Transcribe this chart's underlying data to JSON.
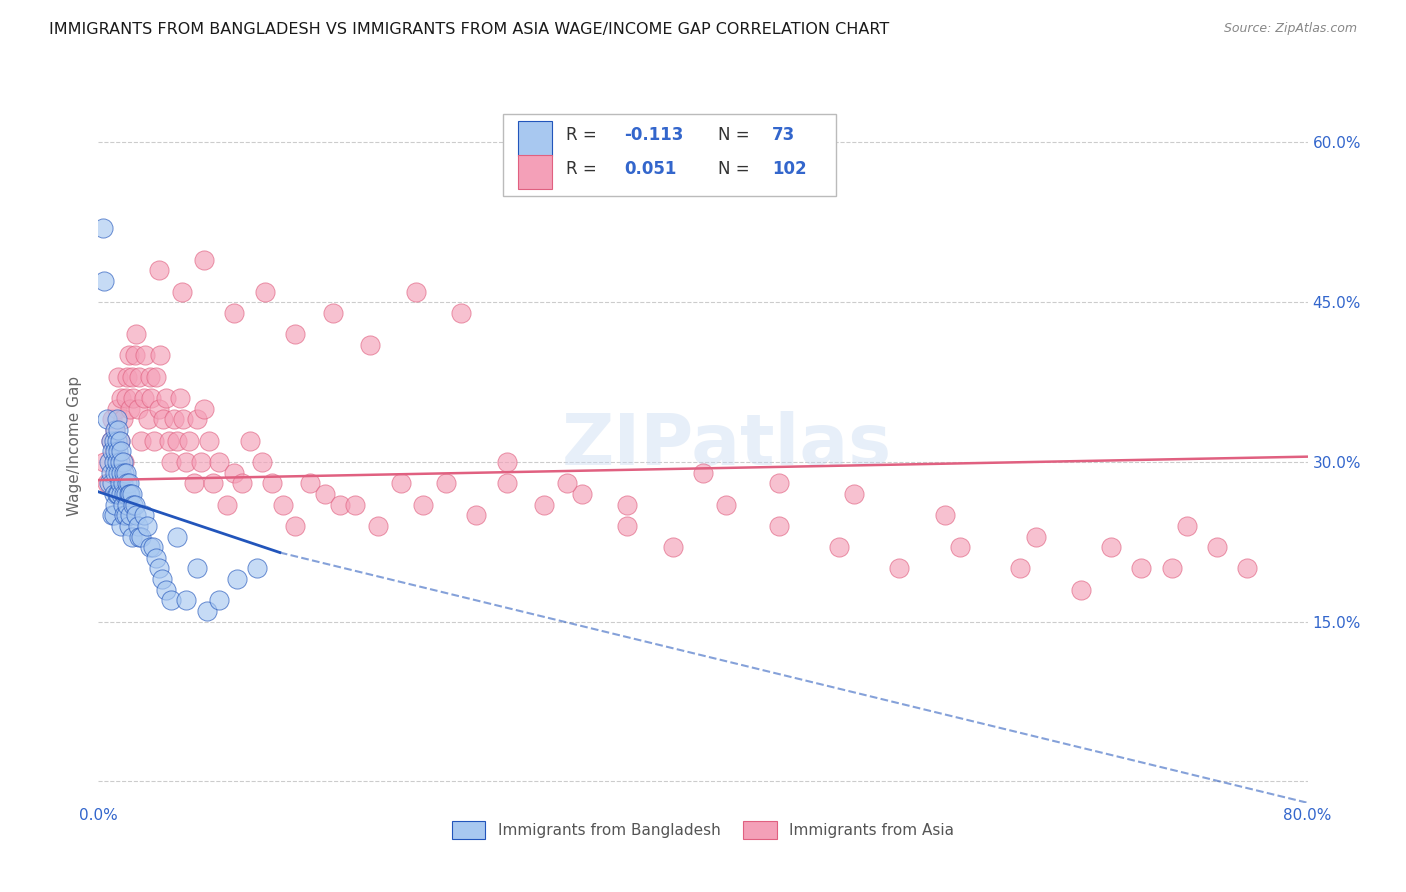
{
  "title": "IMMIGRANTS FROM BANGLADESH VS IMMIGRANTS FROM ASIA WAGE/INCOME GAP CORRELATION CHART",
  "source": "Source: ZipAtlas.com",
  "ylabel": "Wage/Income Gap",
  "xlim": [
    0.0,
    0.8
  ],
  "ylim": [
    -0.02,
    0.65
  ],
  "color_bangladesh": "#A8C8F0",
  "color_asia": "#F4A0B8",
  "line_color_bangladesh": "#2255BB",
  "line_color_asia": "#E06080",
  "watermark": "ZIPatlas",
  "bangladesh_x": [
    0.003,
    0.004,
    0.006,
    0.007,
    0.007,
    0.008,
    0.008,
    0.009,
    0.009,
    0.009,
    0.01,
    0.01,
    0.01,
    0.01,
    0.011,
    0.011,
    0.011,
    0.011,
    0.012,
    0.012,
    0.012,
    0.012,
    0.013,
    0.013,
    0.013,
    0.013,
    0.014,
    0.014,
    0.014,
    0.015,
    0.015,
    0.015,
    0.015,
    0.016,
    0.016,
    0.016,
    0.017,
    0.017,
    0.017,
    0.018,
    0.018,
    0.018,
    0.019,
    0.019,
    0.02,
    0.02,
    0.02,
    0.021,
    0.021,
    0.022,
    0.022,
    0.023,
    0.024,
    0.025,
    0.026,
    0.027,
    0.028,
    0.03,
    0.032,
    0.034,
    0.036,
    0.038,
    0.04,
    0.042,
    0.045,
    0.048,
    0.052,
    0.058,
    0.065,
    0.072,
    0.08,
    0.092,
    0.105
  ],
  "bangladesh_y": [
    0.52,
    0.47,
    0.34,
    0.3,
    0.28,
    0.32,
    0.29,
    0.31,
    0.28,
    0.25,
    0.32,
    0.3,
    0.27,
    0.25,
    0.33,
    0.31,
    0.29,
    0.26,
    0.34,
    0.32,
    0.3,
    0.27,
    0.33,
    0.31,
    0.29,
    0.27,
    0.32,
    0.3,
    0.28,
    0.31,
    0.29,
    0.27,
    0.24,
    0.3,
    0.28,
    0.26,
    0.29,
    0.27,
    0.25,
    0.29,
    0.27,
    0.25,
    0.28,
    0.26,
    0.28,
    0.27,
    0.24,
    0.27,
    0.25,
    0.27,
    0.23,
    0.26,
    0.26,
    0.25,
    0.24,
    0.23,
    0.23,
    0.25,
    0.24,
    0.22,
    0.22,
    0.21,
    0.2,
    0.19,
    0.18,
    0.17,
    0.23,
    0.17,
    0.2,
    0.16,
    0.17,
    0.19,
    0.2
  ],
  "asia_x": [
    0.004,
    0.006,
    0.008,
    0.009,
    0.01,
    0.011,
    0.012,
    0.013,
    0.014,
    0.015,
    0.016,
    0.017,
    0.018,
    0.019,
    0.02,
    0.021,
    0.022,
    0.023,
    0.024,
    0.025,
    0.026,
    0.027,
    0.028,
    0.03,
    0.031,
    0.033,
    0.034,
    0.035,
    0.037,
    0.038,
    0.04,
    0.041,
    0.043,
    0.045,
    0.047,
    0.048,
    0.05,
    0.052,
    0.054,
    0.056,
    0.058,
    0.06,
    0.063,
    0.065,
    0.068,
    0.07,
    0.073,
    0.076,
    0.08,
    0.085,
    0.09,
    0.095,
    0.1,
    0.108,
    0.115,
    0.122,
    0.13,
    0.14,
    0.15,
    0.16,
    0.17,
    0.185,
    0.2,
    0.215,
    0.23,
    0.25,
    0.27,
    0.295,
    0.32,
    0.35,
    0.38,
    0.415,
    0.45,
    0.49,
    0.53,
    0.57,
    0.61,
    0.65,
    0.69,
    0.72,
    0.74,
    0.76,
    0.04,
    0.055,
    0.07,
    0.09,
    0.11,
    0.13,
    0.155,
    0.18,
    0.21,
    0.24,
    0.27,
    0.31,
    0.35,
    0.4,
    0.45,
    0.5,
    0.56,
    0.62,
    0.67,
    0.71
  ],
  "asia_y": [
    0.3,
    0.28,
    0.32,
    0.34,
    0.31,
    0.33,
    0.35,
    0.38,
    0.32,
    0.36,
    0.34,
    0.3,
    0.36,
    0.38,
    0.4,
    0.35,
    0.38,
    0.36,
    0.4,
    0.42,
    0.35,
    0.38,
    0.32,
    0.36,
    0.4,
    0.34,
    0.38,
    0.36,
    0.32,
    0.38,
    0.35,
    0.4,
    0.34,
    0.36,
    0.32,
    0.3,
    0.34,
    0.32,
    0.36,
    0.34,
    0.3,
    0.32,
    0.28,
    0.34,
    0.3,
    0.35,
    0.32,
    0.28,
    0.3,
    0.26,
    0.29,
    0.28,
    0.32,
    0.3,
    0.28,
    0.26,
    0.24,
    0.28,
    0.27,
    0.26,
    0.26,
    0.24,
    0.28,
    0.26,
    0.28,
    0.25,
    0.28,
    0.26,
    0.27,
    0.24,
    0.22,
    0.26,
    0.24,
    0.22,
    0.2,
    0.22,
    0.2,
    0.18,
    0.2,
    0.24,
    0.22,
    0.2,
    0.48,
    0.46,
    0.49,
    0.44,
    0.46,
    0.42,
    0.44,
    0.41,
    0.46,
    0.44,
    0.3,
    0.28,
    0.26,
    0.29,
    0.28,
    0.27,
    0.25,
    0.23,
    0.22,
    0.2
  ],
  "line_bang_x0": 0.0,
  "line_bang_y0": 0.272,
  "line_bang_x1": 0.12,
  "line_bang_y1": 0.215,
  "line_bang_dash_x1": 0.8,
  "line_bang_dash_y1": -0.02,
  "line_asia_x0": 0.0,
  "line_asia_y0": 0.283,
  "line_asia_x1": 0.8,
  "line_asia_y1": 0.305
}
